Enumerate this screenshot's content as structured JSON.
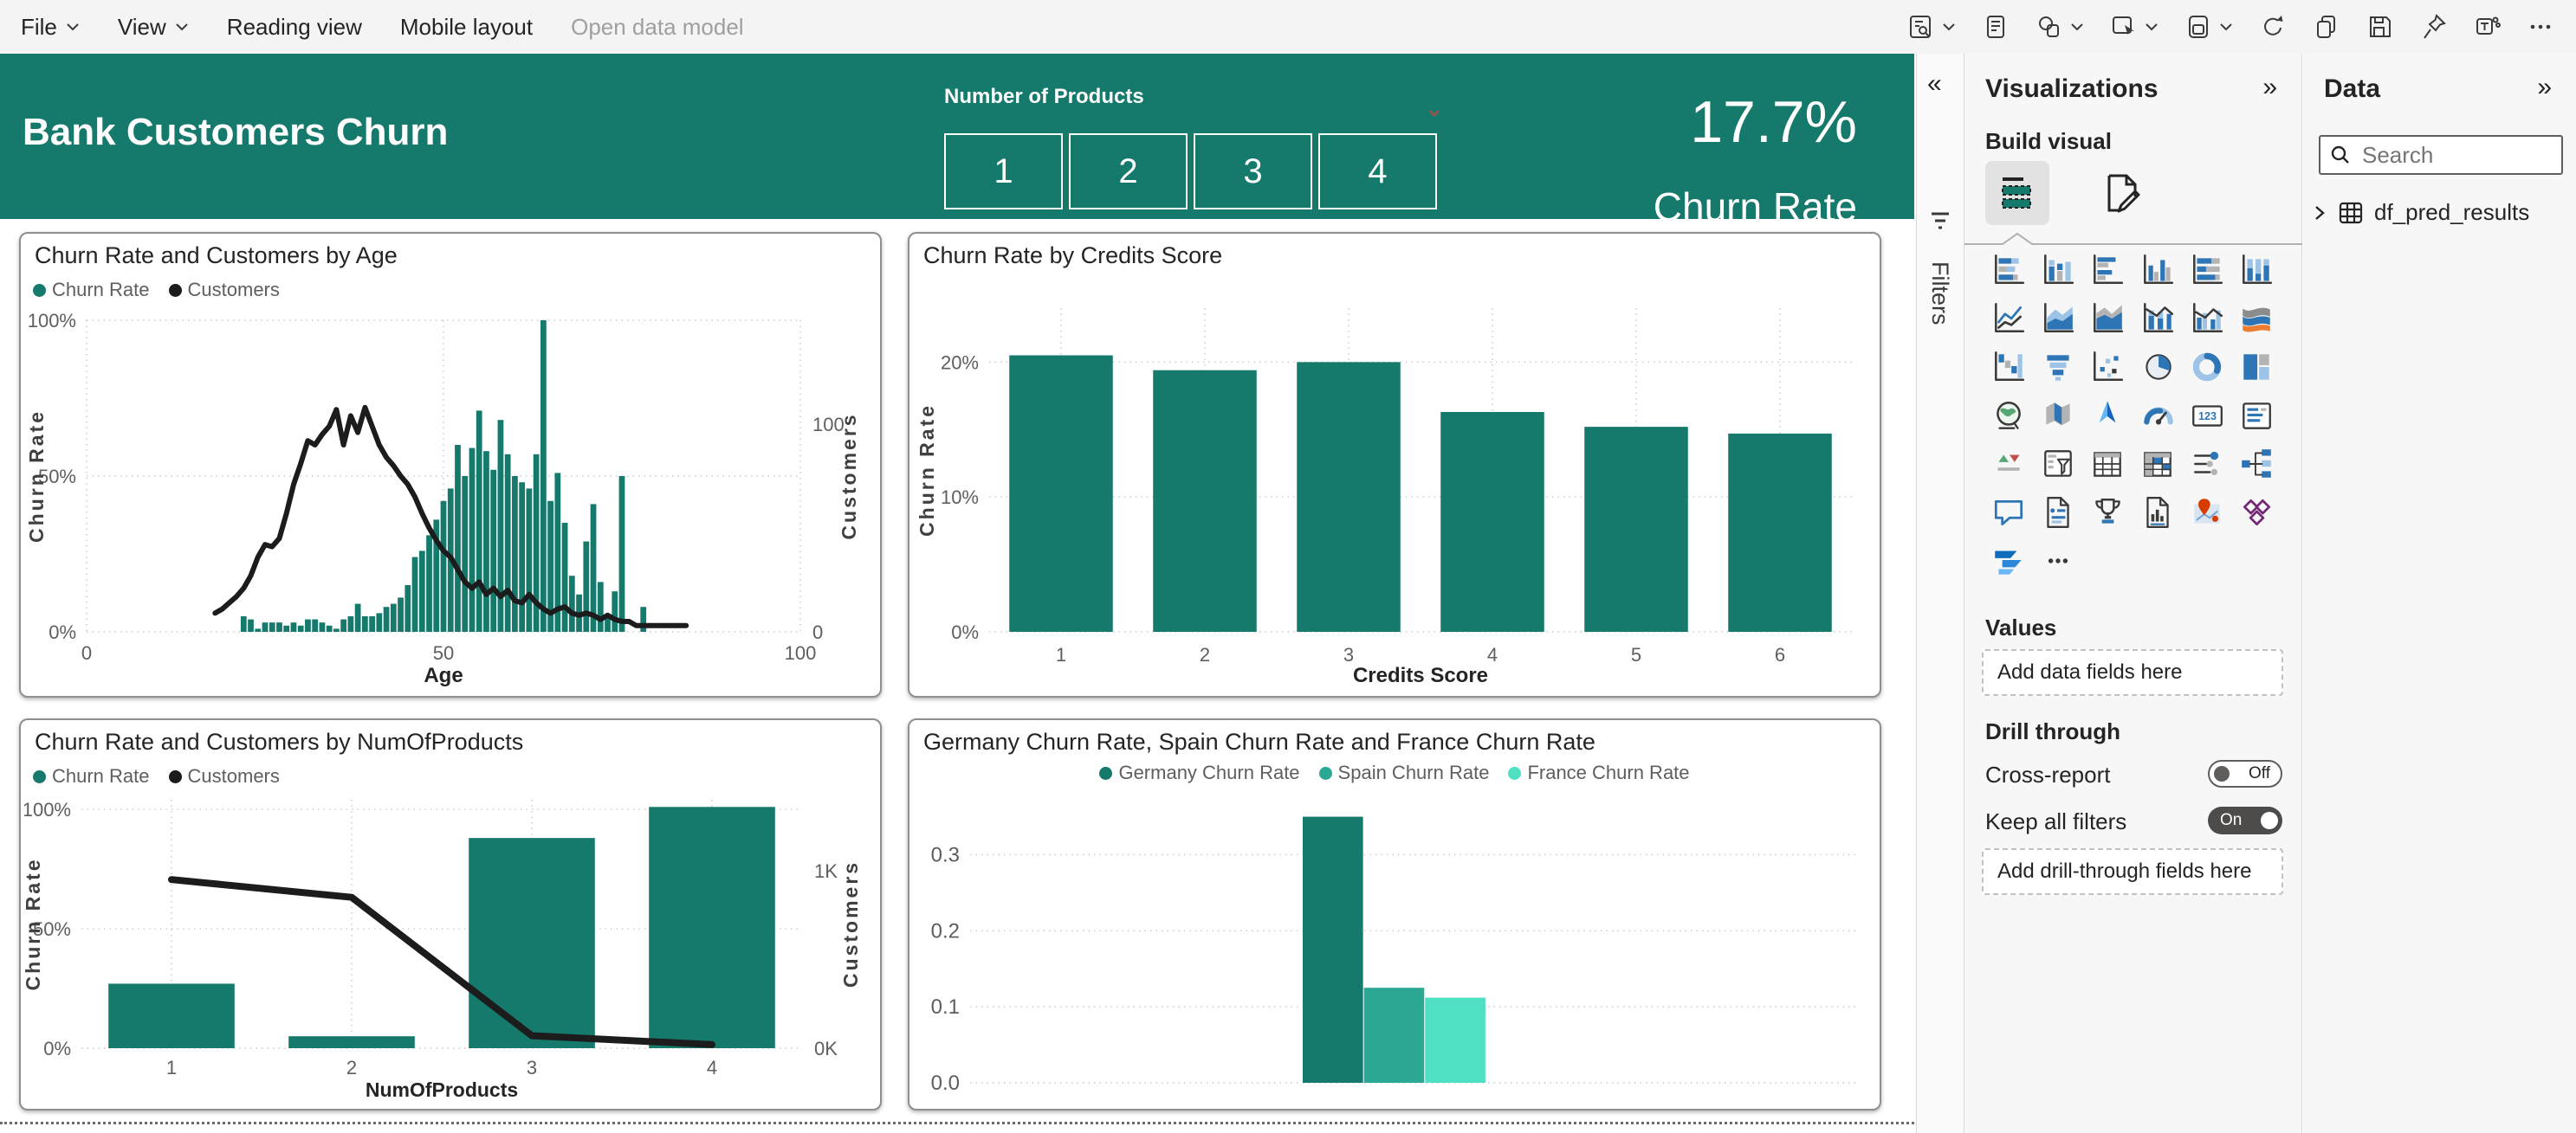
{
  "menu_bar": {
    "items": [
      {
        "label": "File",
        "chevron": true,
        "disabled": false
      },
      {
        "label": "View",
        "chevron": true,
        "disabled": false
      },
      {
        "label": "Reading view",
        "chevron": false,
        "disabled": false
      },
      {
        "label": "Mobile layout",
        "chevron": false,
        "disabled": false
      },
      {
        "label": "Open data model",
        "chevron": false,
        "disabled": true
      }
    ],
    "toolbar_icons": [
      {
        "name": "view-options",
        "chevron": true
      },
      {
        "name": "text-box",
        "chevron": false
      },
      {
        "name": "shapes",
        "chevron": true
      },
      {
        "name": "buttons",
        "chevron": true
      },
      {
        "name": "visuals",
        "chevron": true
      },
      {
        "name": "refresh",
        "chevron": false
      },
      {
        "name": "copy",
        "chevron": false
      },
      {
        "name": "save",
        "chevron": false
      },
      {
        "name": "pin",
        "chevron": false
      },
      {
        "name": "teams",
        "chevron": false
      },
      {
        "name": "more-options",
        "chevron": false
      }
    ]
  },
  "header": {
    "title": "Bank Customers Churn",
    "slicer_label": "Number of Products",
    "slicer_options": [
      "1",
      "2",
      "3",
      "4"
    ],
    "kpi_value": "17.7%",
    "kpi_label": "Churn Rate",
    "background_color": "#15796c"
  },
  "filters_pane": {
    "label": "Filters"
  },
  "visualizations_panel": {
    "title": "Visualizations",
    "build_visual_label": "Build visual",
    "gallery_icons": [
      "stacked-bar-chart",
      "stacked-column-chart",
      "clustered-bar-chart",
      "clustered-column-chart",
      "hundred-stacked-bar-chart",
      "hundred-stacked-column-chart",
      "line-chart",
      "area-chart",
      "stacked-area-chart",
      "line-stacked-column-chart",
      "line-clustered-column-chart",
      "ribbon-chart",
      "waterfall-chart",
      "funnel-chart",
      "scatter-chart",
      "pie-chart",
      "donut-chart",
      "treemap",
      "map",
      "filled-map",
      "azure-map",
      "gauge",
      "card",
      "multi-row-card",
      "kpi",
      "slicer",
      "table",
      "matrix",
      "key-influencers",
      "decomposition-tree",
      "qa",
      "smart-narrative",
      "metrics",
      "paginated-report",
      "arcgis-map",
      "power-apps",
      "power-automate",
      "more-options"
    ],
    "values_label": "Values",
    "values_placeholder": "Add data fields here",
    "drill_through_label": "Drill through",
    "cross_report_label": "Cross-report",
    "cross_report_state": "Off",
    "keep_filters_label": "Keep all filters",
    "keep_filters_state": "On",
    "drill_placeholder": "Add drill-through fields here"
  },
  "data_panel": {
    "title": "Data",
    "search_placeholder": "Search",
    "tables": [
      "df_pred_results"
    ]
  },
  "colors": {
    "teal": "#15796c",
    "spain": "#2aa893",
    "france": "#4fe0c4",
    "line": "#1c1c1c"
  },
  "chart_data": [
    {
      "type": "combo-bar-line",
      "title": "Churn Rate and Customers by Age",
      "legend": [
        {
          "name": "Churn Rate",
          "color": "#15796c"
        },
        {
          "name": "Customers",
          "color": "#1c1c1c"
        }
      ],
      "xlabel": "Age",
      "y_left": {
        "label": "Churn Rate",
        "tick_values": [
          0,
          50,
          100
        ],
        "tick_labels": [
          "0%",
          "50%",
          "100%"
        ],
        "max": 100
      },
      "y_right": {
        "label": "Customers",
        "tick_values": [
          0,
          100
        ],
        "tick_labels": [
          "0",
          "100"
        ],
        "max": 150
      },
      "x_ticks": [
        0,
        50,
        100
      ],
      "x_range": [
        0,
        100
      ],
      "age_start": 18,
      "bar_values": [
        0,
        0,
        0,
        0,
        5,
        4,
        1,
        3,
        3,
        3,
        2,
        3,
        2,
        4,
        4,
        3,
        2,
        1,
        4,
        5,
        9,
        5,
        5,
        6,
        8,
        9,
        11,
        15,
        24,
        26,
        31,
        36,
        42,
        46,
        60,
        50,
        59,
        71,
        58,
        52,
        68,
        57,
        50,
        48,
        46,
        57,
        100,
        42,
        51,
        35,
        18,
        12,
        29,
        41,
        16,
        5,
        13,
        50,
        0,
        0,
        8,
        0,
        0,
        0,
        0,
        0,
        0
      ],
      "line_values": [
        9,
        11,
        14,
        17,
        21,
        27,
        36,
        42,
        41,
        45,
        57,
        71,
        81,
        92,
        90,
        95,
        99,
        107,
        90,
        104,
        96,
        108,
        99,
        90,
        84,
        80,
        75,
        71,
        65,
        57,
        50,
        44,
        39,
        36,
        30,
        24,
        21,
        24,
        18,
        21,
        17,
        20,
        15,
        14,
        18,
        14,
        11,
        9,
        11,
        12,
        9,
        8,
        9,
        8,
        6,
        8,
        6,
        5,
        5,
        3,
        3,
        3,
        3,
        3,
        3,
        3,
        3
      ]
    },
    {
      "type": "bar",
      "title": "Churn Rate by Credits Score",
      "categories": [
        "1",
        "2",
        "3",
        "4",
        "5",
        "6"
      ],
      "values": [
        20.5,
        19.4,
        20.0,
        16.3,
        15.2,
        14.7
      ],
      "xlabel": "Credits Score",
      "ylabel": "Churn Rate",
      "y_ticks": {
        "tick_values": [
          0,
          10,
          20
        ],
        "tick_labels": [
          "0%",
          "10%",
          "20%"
        ],
        "max": 24
      }
    },
    {
      "type": "combo-bar-line-categorical",
      "title": "Churn Rate and Customers by NumOfProducts",
      "legend": [
        {
          "name": "Churn Rate",
          "color": "#15796c"
        },
        {
          "name": "Customers",
          "color": "#1c1c1c"
        }
      ],
      "xlabel": "NumOfProducts",
      "categories": [
        "1",
        "2",
        "3",
        "4"
      ],
      "bar_values": [
        27,
        5,
        88,
        101
      ],
      "line_values": [
        0.95,
        0.85,
        0.07,
        0.02
      ],
      "y_left": {
        "label": "Churn Rate",
        "tick_values": [
          0,
          50,
          100
        ],
        "tick_labels": [
          "0%",
          "50%",
          "100%"
        ],
        "max": 104
      },
      "y_right": {
        "label": "Customers",
        "tick_values": [
          0,
          1
        ],
        "tick_labels": [
          "0K",
          "1K"
        ],
        "max": 1.4
      }
    },
    {
      "type": "clustered-bar",
      "title": "Germany Churn Rate, Spain Churn Rate and France Churn Rate",
      "series": [
        {
          "name": "Germany Churn Rate",
          "color": "#15796c",
          "value": 0.35
        },
        {
          "name": "Spain Churn Rate",
          "color": "#2aa893",
          "value": 0.125
        },
        {
          "name": "France Churn Rate",
          "color": "#4fe0c4",
          "value": 0.112
        }
      ],
      "y_ticks": {
        "tick_values": [
          0,
          0.1,
          0.2,
          0.3
        ],
        "tick_labels": [
          "0.0",
          "0.1",
          "0.2",
          "0.3"
        ],
        "max": 0.37
      }
    }
  ]
}
